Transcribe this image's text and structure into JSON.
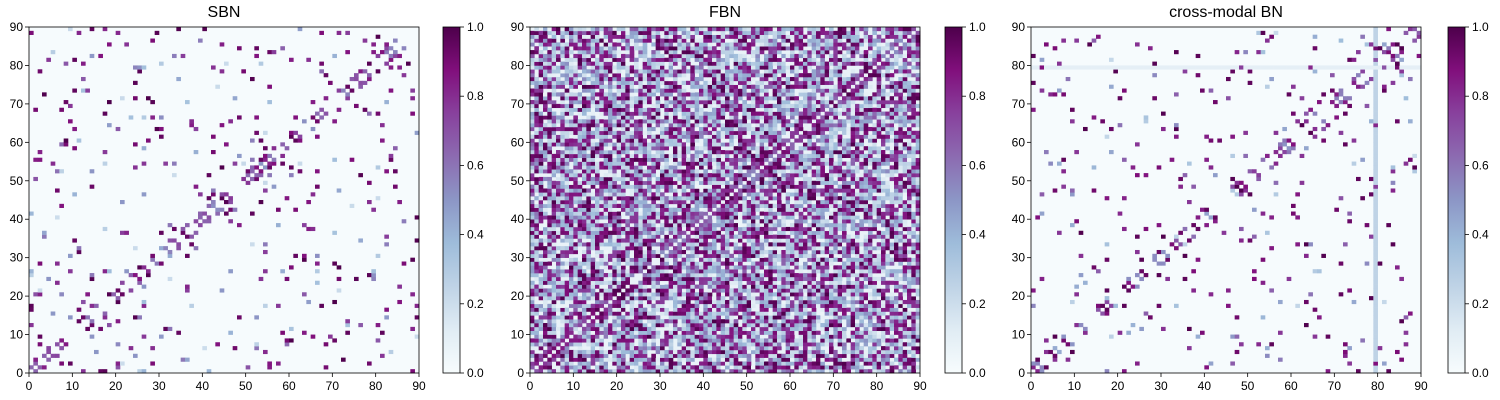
{
  "chart_data": [
    {
      "type": "heatmap",
      "title": "SBN",
      "size": 90,
      "xlim": [
        0,
        90
      ],
      "ylim": [
        0,
        90
      ],
      "x_ticks": [
        0,
        10,
        20,
        30,
        40,
        50,
        60,
        70,
        80,
        90
      ],
      "y_ticks": [
        0,
        10,
        20,
        30,
        40,
        50,
        60,
        70,
        80,
        90
      ],
      "colorbar": {
        "min": 0.0,
        "max": 1.0,
        "ticks": [
          "0.0",
          "0.2",
          "0.4",
          "0.6",
          "0.8",
          "1.0"
        ]
      },
      "colormap": "BuPu",
      "density": 0.05,
      "background_level": 0.02,
      "diagonal_band": 0.35,
      "seed": 11,
      "vertical_lines": []
    },
    {
      "type": "heatmap",
      "title": "FBN",
      "size": 90,
      "xlim": [
        0,
        90
      ],
      "ylim": [
        0,
        90
      ],
      "x_ticks": [
        0,
        10,
        20,
        30,
        40,
        50,
        60,
        70,
        80,
        90
      ],
      "y_ticks": [
        0,
        10,
        20,
        30,
        40,
        50,
        60,
        70,
        80,
        90
      ],
      "colorbar": {
        "min": 0.0,
        "max": 1.0,
        "ticks": [
          "0.0",
          "0.2",
          "0.4",
          "0.6",
          "0.8",
          "1.0"
        ]
      },
      "colormap": "BuPu",
      "density": 0.55,
      "background_level": 0.25,
      "diagonal_band": 0.9,
      "seed": 23,
      "vertical_lines": []
    },
    {
      "type": "heatmap",
      "title": "cross-modal BN",
      "size": 90,
      "xlim": [
        0,
        90
      ],
      "ylim": [
        0,
        90
      ],
      "x_ticks": [
        0,
        10,
        20,
        30,
        40,
        50,
        60,
        70,
        80,
        90
      ],
      "y_ticks": [
        0,
        10,
        20,
        30,
        40,
        50,
        60,
        70,
        80,
        90
      ],
      "colorbar": {
        "min": 0.0,
        "max": 1.0,
        "ticks": [
          "0.0",
          "0.2",
          "0.4",
          "0.6",
          "0.8",
          "1.0"
        ]
      },
      "colormap": "BuPu",
      "density": 0.04,
      "background_level": 0.02,
      "diagonal_band": 0.3,
      "seed": 37,
      "vertical_lines": [
        79
      ]
    }
  ],
  "colors": {
    "cmap_stops": [
      "#f7fcfd",
      "#e0ecf4",
      "#bfd3e6",
      "#9ebcda",
      "#8c96c6",
      "#8c6bb1",
      "#88419d",
      "#810f7c",
      "#4d004b"
    ]
  }
}
